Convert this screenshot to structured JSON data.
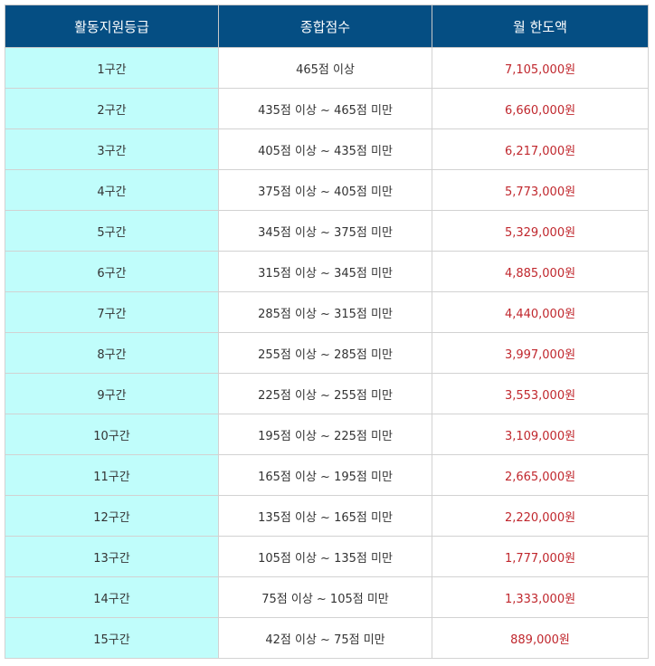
{
  "table": {
    "headers": [
      "활동지원등급",
      "종합점수",
      "월 한도액"
    ],
    "rows": [
      {
        "grade": "1구간",
        "score": "465점 이상",
        "limit": "7,105,000원"
      },
      {
        "grade": "2구간",
        "score": "435점 이상 ~ 465점 미만",
        "limit": "6,660,000원"
      },
      {
        "grade": "3구간",
        "score": "405점 이상 ~ 435점 미만",
        "limit": "6,217,000원"
      },
      {
        "grade": "4구간",
        "score": "375점 이상 ~ 405점 미만",
        "limit": "5,773,000원"
      },
      {
        "grade": "5구간",
        "score": "345점 이상 ~ 375점 미만",
        "limit": "5,329,000원"
      },
      {
        "grade": "6구간",
        "score": "315점 이상 ~ 345점 미만",
        "limit": "4,885,000원"
      },
      {
        "grade": "7구간",
        "score": "285점 이상 ~ 315점 미만",
        "limit": "4,440,000원"
      },
      {
        "grade": "8구간",
        "score": "255점 이상 ~ 285점 미만",
        "limit": "3,997,000원"
      },
      {
        "grade": "9구간",
        "score": "225점 이상 ~ 255점 미만",
        "limit": "3,553,000원"
      },
      {
        "grade": "10구간",
        "score": "195점 이상 ~ 225점 미만",
        "limit": "3,109,000원"
      },
      {
        "grade": "11구간",
        "score": "165점 이상 ~ 195점 미만",
        "limit": "2,665,000원"
      },
      {
        "grade": "12구간",
        "score": "135점 이상 ~ 165점 미만",
        "limit": "2,220,000원"
      },
      {
        "grade": "13구간",
        "score": "105점 이상 ~ 135점 미만",
        "limit": "1,777,000원"
      },
      {
        "grade": "14구간",
        "score": "75점 이상 ~ 105점 미만",
        "limit": "1,333,000원"
      },
      {
        "grade": "15구간",
        "score": "42점 이상 ~ 75점 미만",
        "limit": "889,000원"
      }
    ]
  },
  "colors": {
    "header_bg": "#054e83",
    "header_text": "#ffffff",
    "grade_bg": "#c0fdfb",
    "amount_text": "#c0272d"
  }
}
